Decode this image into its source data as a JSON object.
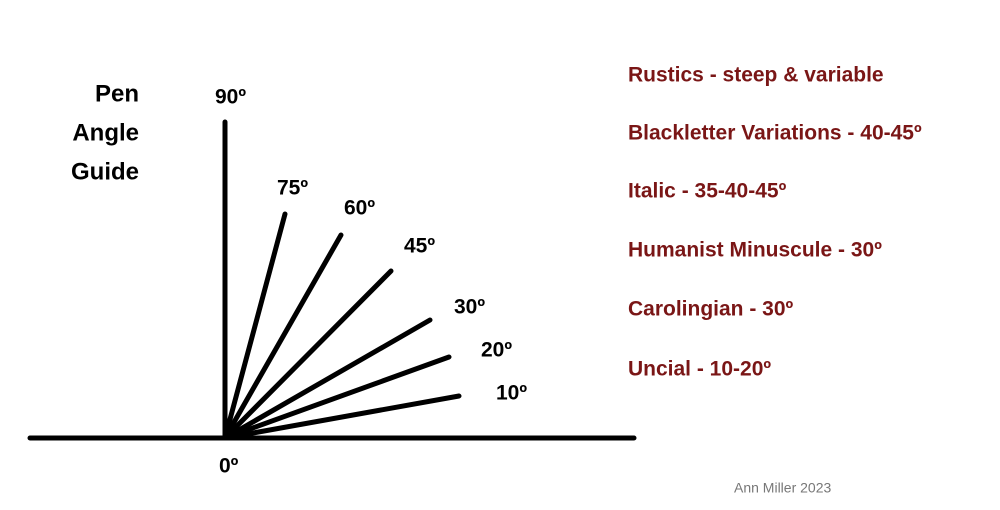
{
  "title": [
    "Pen",
    "Angle",
    "Guide"
  ],
  "angles": [
    "90º",
    "75º",
    "60º",
    "45º",
    "30º",
    "20º",
    "10º",
    "0º"
  ],
  "styles": [
    "Rustics - steep & variable",
    "Blackletter Variations - 40-45º",
    "Italic - 35-40-45º",
    "Humanist Minuscule - 30º",
    "Carolingian - 30º",
    "Uncial - 10-20º"
  ],
  "credit": "Ann Miller 2023"
}
